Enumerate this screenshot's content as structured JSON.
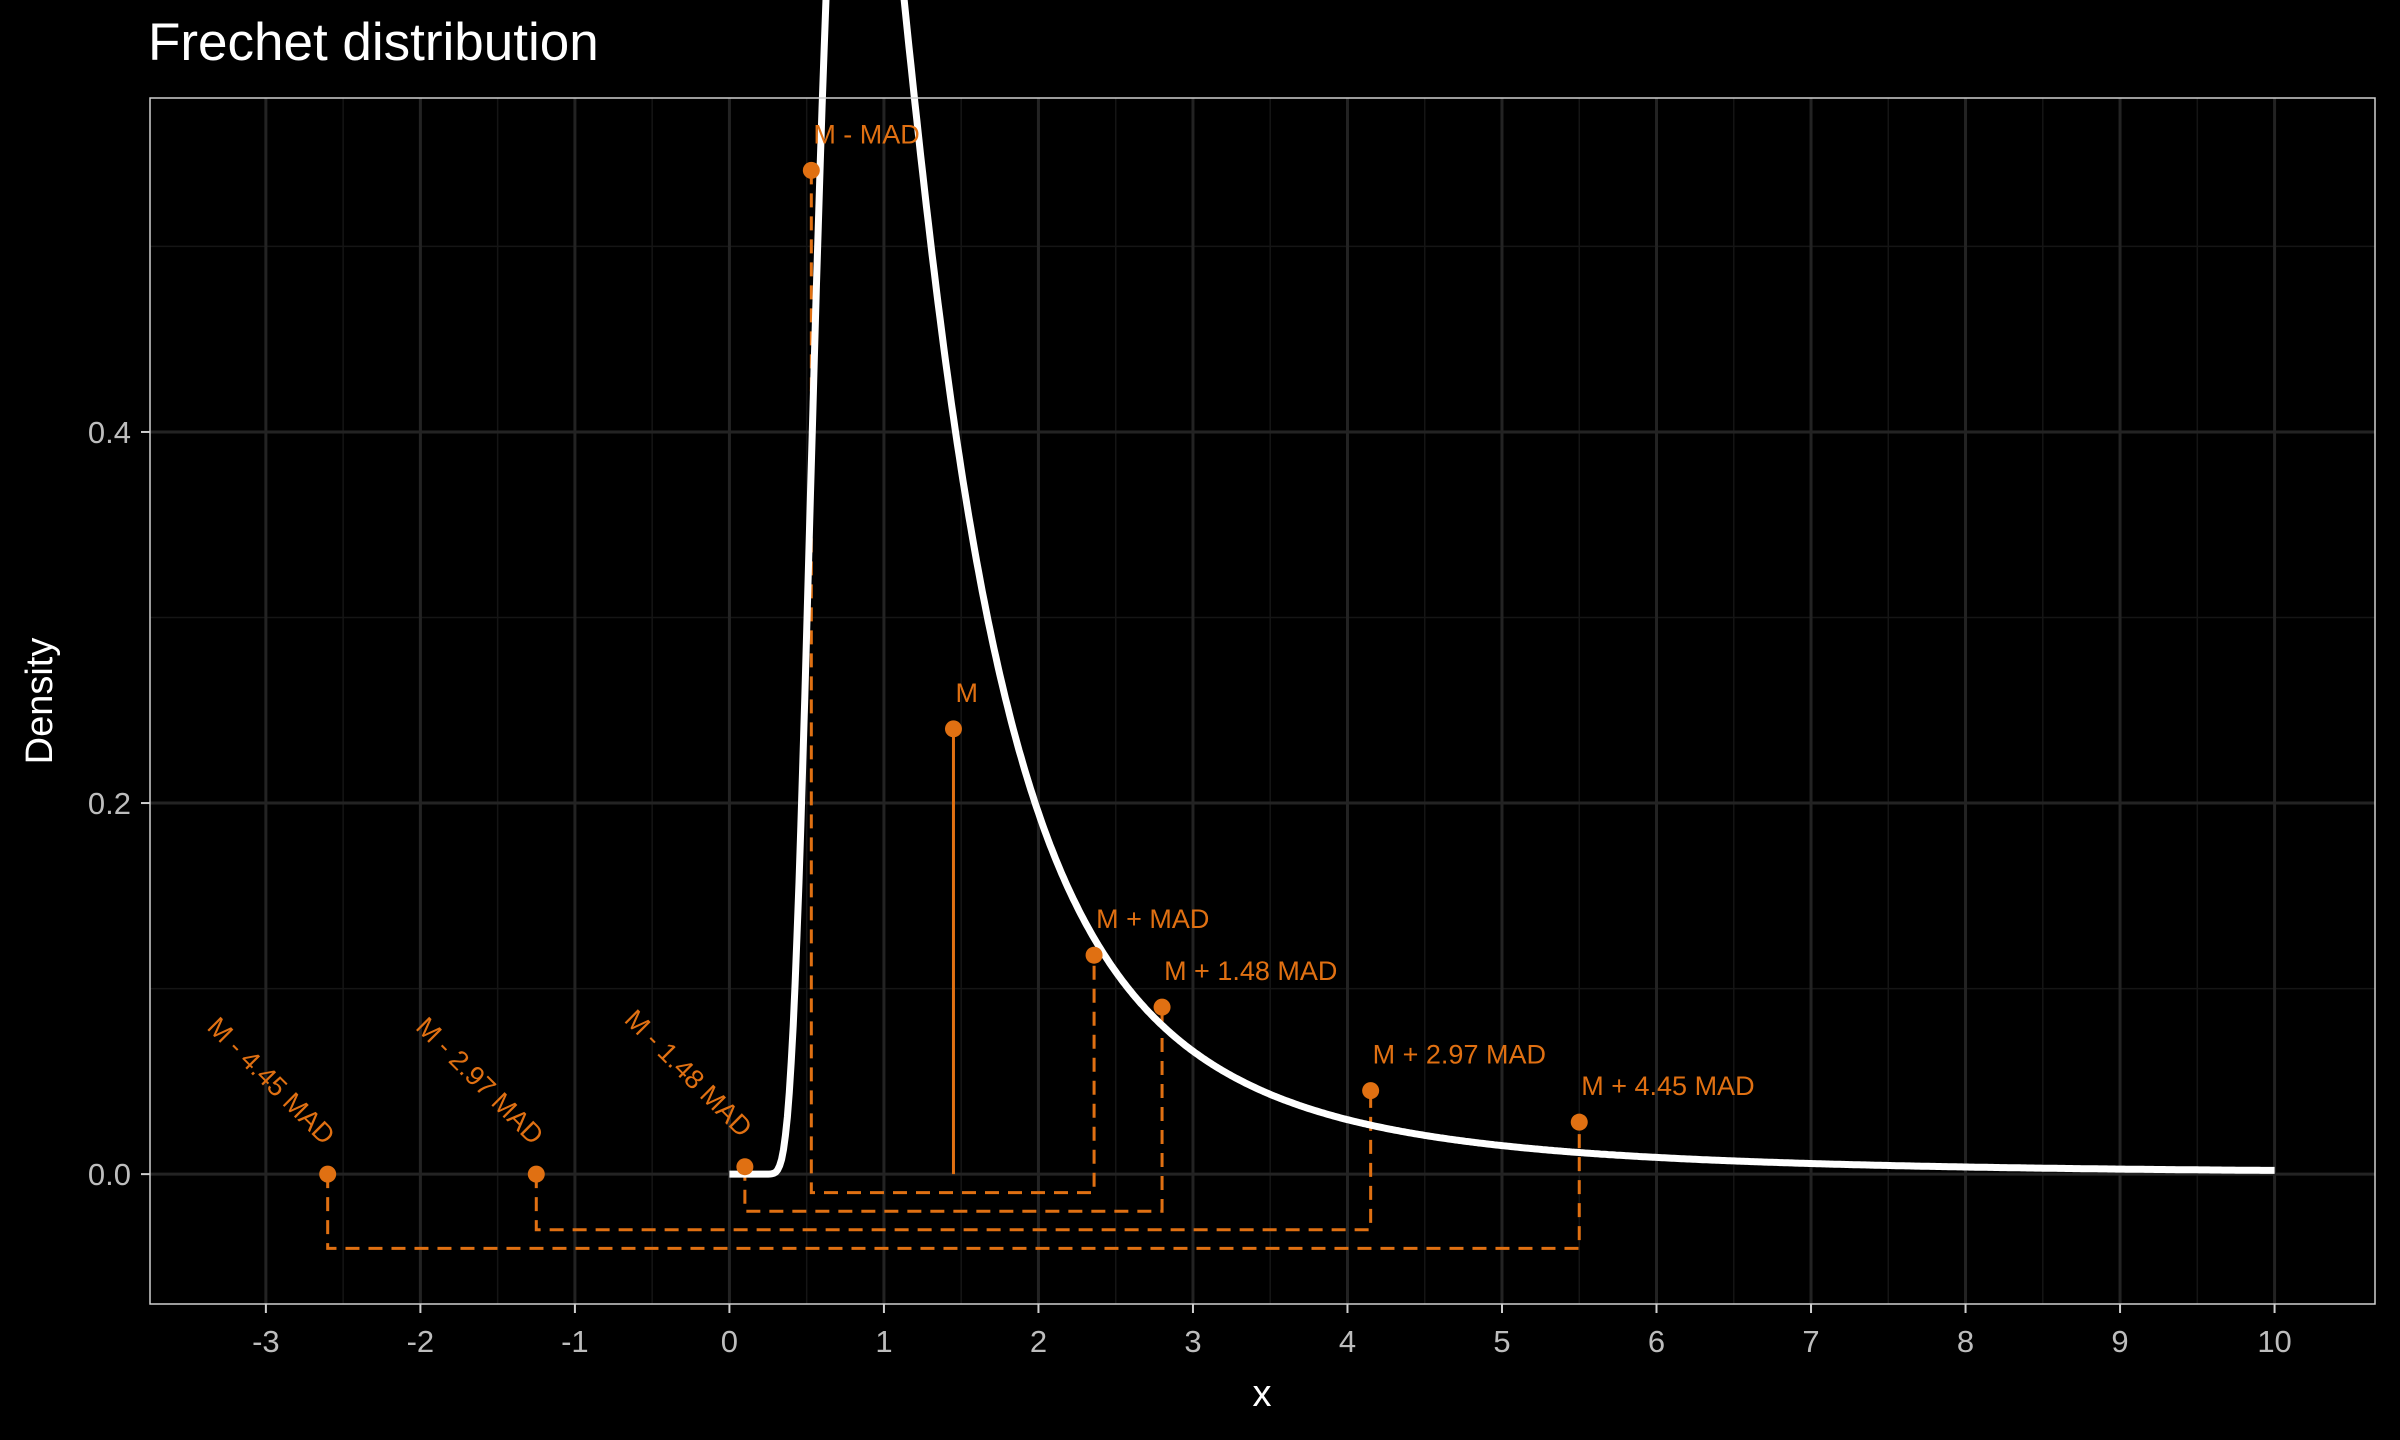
{
  "chart_data": {
    "type": "line",
    "title": "Frechet distribution",
    "xlabel": "x",
    "ylabel": "Density",
    "xlim": [
      -3.75,
      10.65
    ],
    "ylim": [
      -0.07,
      0.58
    ],
    "x_ticks": [
      "-3",
      "-2",
      "-1",
      "0",
      "1",
      "2",
      "3",
      "4",
      "5",
      "6",
      "7",
      "8",
      "9",
      "10"
    ],
    "y_ticks": [
      "0.0",
      "0.2",
      "0.4"
    ],
    "grid": true,
    "background": "#000000",
    "colors": {
      "curve": "#ffffff",
      "accent": "#e07012",
      "grid_major": "#232323",
      "grid_minor": "#151515",
      "tick_text": "#bdbdbd"
    },
    "distribution": {
      "name": "Frechet",
      "alpha": 2,
      "scale": 1,
      "x_range": [
        0,
        10
      ]
    },
    "points": [
      {
        "label": "M - 4.45 MAD",
        "x": -2.6,
        "y": 0.0,
        "label_rotated": true
      },
      {
        "label": "M - 2.97 MAD",
        "x": -1.25,
        "y": 0.0,
        "label_rotated": true
      },
      {
        "label": "M - 1.48 MAD",
        "x": 0.1,
        "y": 0.004,
        "label_rotated": true
      },
      {
        "label": "M - MAD",
        "x": 0.53,
        "y": 0.541,
        "label_rotated": false
      },
      {
        "label": "M",
        "x": 1.45,
        "y": 0.24,
        "label_rotated": false
      },
      {
        "label": "M + MAD",
        "x": 2.36,
        "y": 0.118,
        "label_rotated": false
      },
      {
        "label": "M + 1.48 MAD",
        "x": 2.8,
        "y": 0.09,
        "label_rotated": false
      },
      {
        "label": "M + 2.97 MAD",
        "x": 4.15,
        "y": 0.045,
        "label_rotated": false
      },
      {
        "label": "M + 4.45 MAD",
        "x": 5.5,
        "y": 0.028,
        "label_rotated": false
      }
    ],
    "brackets": [
      {
        "from": "M - MAD",
        "to": "M + MAD",
        "y": -0.01
      },
      {
        "from": "M - 1.48 MAD",
        "to": "M + 1.48 MAD",
        "y": -0.02
      },
      {
        "from": "M - 2.97 MAD",
        "to": "M + 2.97 MAD",
        "y": -0.03
      },
      {
        "from": "M - 4.45 MAD",
        "to": "M + 4.45 MAD",
        "y": -0.04
      }
    ]
  }
}
